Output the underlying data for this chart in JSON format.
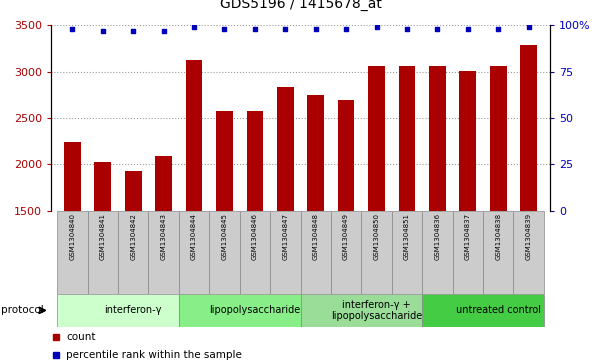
{
  "title": "GDS5196 / 1415678_at",
  "samples": [
    "GSM1304840",
    "GSM1304841",
    "GSM1304842",
    "GSM1304843",
    "GSM1304844",
    "GSM1304845",
    "GSM1304846",
    "GSM1304847",
    "GSM1304848",
    "GSM1304849",
    "GSM1304850",
    "GSM1304851",
    "GSM1304836",
    "GSM1304837",
    "GSM1304838",
    "GSM1304839"
  ],
  "counts": [
    2240,
    2020,
    1930,
    2090,
    3130,
    2580,
    2580,
    2840,
    2750,
    2690,
    3060,
    3060,
    3060,
    3010,
    3060,
    3290
  ],
  "percentile_ranks": [
    98,
    97,
    97,
    97,
    99,
    98,
    98,
    98,
    98,
    98,
    99,
    98,
    98,
    98,
    98,
    99
  ],
  "bar_color": "#aa0000",
  "dot_color": "#0000bb",
  "ylim_left": [
    1500,
    3500
  ],
  "ylim_right": [
    0,
    100
  ],
  "yticks_left": [
    1500,
    2000,
    2500,
    3000,
    3500
  ],
  "yticks_right": [
    0,
    25,
    50,
    75,
    100
  ],
  "ytick_labels_right": [
    "0",
    "25",
    "50",
    "75",
    "100%"
  ],
  "groups": [
    {
      "label": "interferon-γ",
      "start": 0,
      "end": 4,
      "color": "#ccffcc"
    },
    {
      "label": "lipopolysaccharide",
      "start": 4,
      "end": 8,
      "color": "#88ee88"
    },
    {
      "label": "interferon-γ +\nlipopolysaccharide",
      "start": 8,
      "end": 12,
      "color": "#99dd99"
    },
    {
      "label": "untreated control",
      "start": 12,
      "end": 16,
      "color": "#44cc44"
    }
  ],
  "protocol_label": "protocol",
  "legend_count_label": "count",
  "legend_percentile_label": "percentile rank within the sample",
  "sample_box_color": "#cccccc",
  "grid_color": "#999999",
  "title_fontsize": 10,
  "axis_fontsize": 8,
  "sample_fontsize": 5,
  "group_fontsize": 7
}
